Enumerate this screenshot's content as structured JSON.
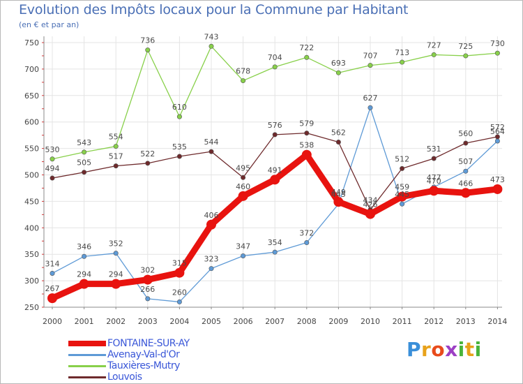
{
  "chart_data": {
    "type": "line",
    "title": "Evolution des Impôts locaux pour la Commune par Habitant",
    "subtitle": "(en € et par an)",
    "x": [
      "2000",
      "2001",
      "2002",
      "2003",
      "2004",
      "2005",
      "2006",
      "2007",
      "2008",
      "2009",
      "2010",
      "2011",
      "2012",
      "2013",
      "2014"
    ],
    "ylim": [
      250,
      750
    ],
    "yticks": [
      250,
      300,
      350,
      400,
      450,
      500,
      550,
      600,
      650,
      700,
      750
    ],
    "grid": true,
    "series": [
      {
        "name": "FONTAINE-SUR-AY",
        "color": "#e8130f",
        "values": [
          267,
          294,
          294,
          302,
          315,
          406,
          460,
          491,
          538,
          449,
          426,
          459,
          470,
          466,
          473
        ],
        "labels": [
          "267",
          "294",
          "294",
          "302",
          "315",
          "406",
          "460",
          "491",
          "538",
          "449",
          "426",
          "459",
          "470",
          "466",
          "473"
        ]
      },
      {
        "name": "Avenay-Val-d'Or",
        "color": "#5e9ad6",
        "values": [
          314,
          346,
          352,
          266,
          260,
          323,
          347,
          354,
          372,
          445,
          627,
          445,
          477,
          507,
          564
        ],
        "labels": [
          "314",
          "346",
          "352",
          "266",
          "260",
          "323",
          "347",
          "354",
          "372",
          "445",
          "627",
          "445",
          "477",
          "507",
          "564"
        ]
      },
      {
        "name": "Tauxières-Mutry",
        "color": "#88d04a",
        "values": [
          530,
          543,
          554,
          736,
          610,
          743,
          678,
          704,
          722,
          693,
          707,
          713,
          727,
          725,
          730
        ],
        "labels": [
          "530",
          "543",
          "554",
          "736",
          "610",
          "743",
          "678",
          "704",
          "722",
          "693",
          "707",
          "713",
          "727",
          "725",
          "730"
        ]
      },
      {
        "name": "Louvois",
        "color": "#6e2a2c",
        "values": [
          494,
          505,
          517,
          522,
          535,
          544,
          495,
          576,
          579,
          562,
          434,
          512,
          531,
          560,
          572
        ],
        "labels": [
          "494",
          "505",
          "517",
          "522",
          "535",
          "544",
          "495",
          "576",
          "579",
          "562",
          "434",
          "512",
          "531",
          "560",
          "572"
        ]
      }
    ]
  },
  "logo": {
    "letters": [
      "P",
      "r",
      "o",
      "x",
      "i",
      "t",
      "i"
    ],
    "colors": [
      "#3a8fd9",
      "#e8a21b",
      "#e84b1b",
      "#9c3fc4",
      "#49b43a",
      "#e8a21b",
      "#49b43a"
    ]
  }
}
